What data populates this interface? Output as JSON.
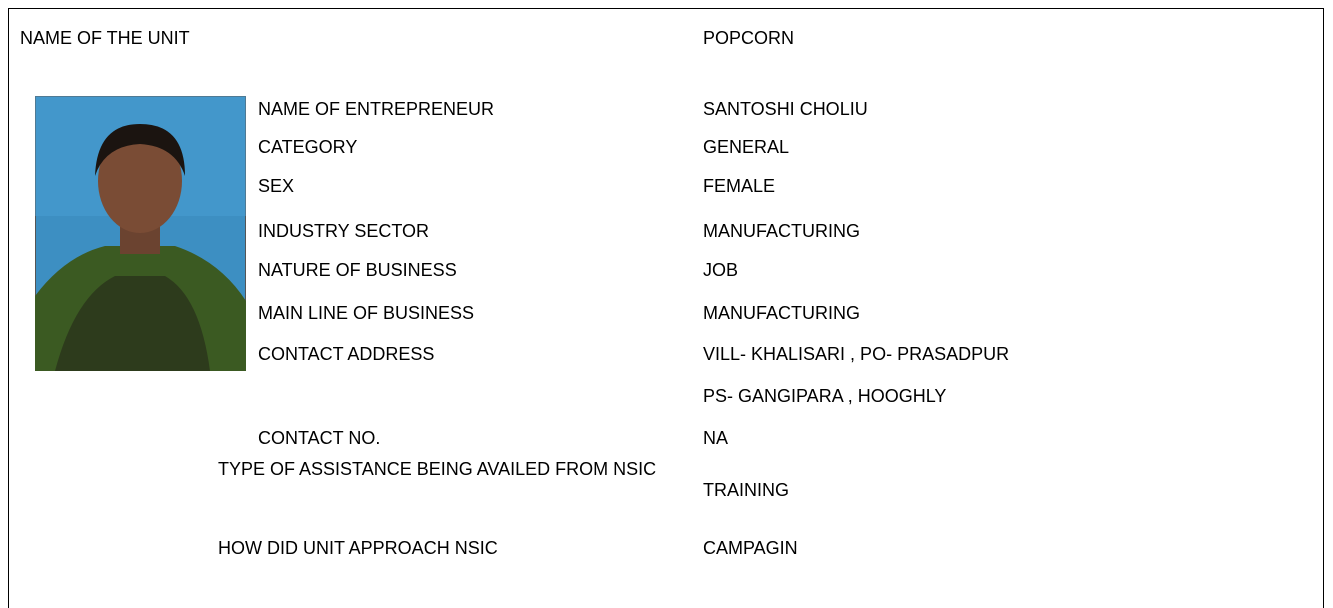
{
  "unit": {
    "label": "NAME OF THE UNIT",
    "value": "POPCORN"
  },
  "fields": [
    {
      "label": "NAME OF ENTREPRENEUR",
      "value": "SANTOSHI CHOLIU"
    },
    {
      "label": "CATEGORY",
      "value": "GENERAL"
    },
    {
      "label": "SEX",
      "value": "FEMALE"
    },
    {
      "label": "INDUSTRY SECTOR",
      "value": "MANUFACTURING"
    },
    {
      "label": "NATURE OF BUSINESS",
      "value": "JOB"
    },
    {
      "label": "MAIN LINE OF BUSINESS",
      "value": "MANUFACTURING"
    }
  ],
  "address": {
    "label": "CONTACT ADDRESS",
    "lines": [
      "VILL- KHALISARI , PO- PRASADPUR",
      "PS- GANGIPARA , HOOGHLY"
    ]
  },
  "contact": {
    "label": "CONTACT NO.",
    "value": "NA"
  },
  "assistance": {
    "label": "TYPE OF ASSISTANCE BEING AVAILED FROM NSIC",
    "value": "TRAINING"
  },
  "approach": {
    "label": "HOW DID UNIT APPROACH NSIC",
    "value": "CAMPAGIN"
  }
}
